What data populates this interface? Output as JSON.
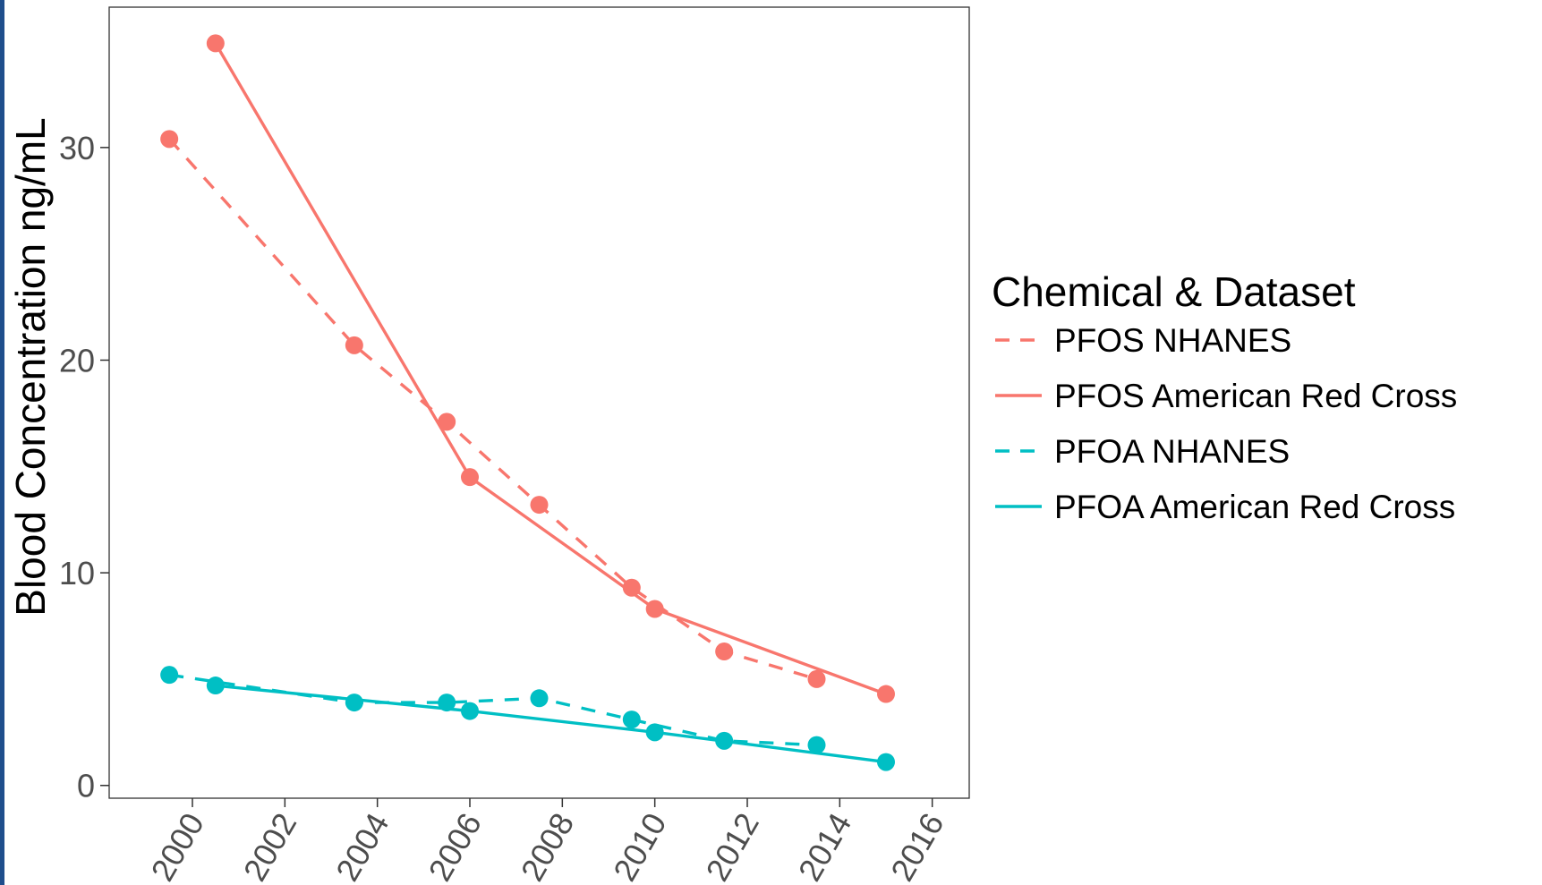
{
  "chart_data": {
    "type": "line",
    "title": "",
    "xlabel": "",
    "ylabel": "Blood Concentration ng/mL",
    "xlim": [
      1998.2,
      2016.8
    ],
    "ylim": [
      -0.6,
      36.6
    ],
    "xticks": [
      2000,
      2002,
      2004,
      2006,
      2008,
      2010,
      2012,
      2014,
      2016
    ],
    "yticks": [
      0,
      10,
      20,
      30
    ],
    "grid": false,
    "legend": {
      "title": "Chemical & Dataset",
      "placement": "right"
    },
    "series": [
      {
        "name": "PFOS NHANES",
        "color": "#F8766D",
        "linestyle": "dashed",
        "x": [
          1999.5,
          2003.5,
          2005.5,
          2007.5,
          2009.5,
          2011.5,
          2013.5
        ],
        "y": [
          30.4,
          20.7,
          17.1,
          13.2,
          9.3,
          6.3,
          5.0
        ]
      },
      {
        "name": "PFOS American Red Cross",
        "color": "#F8766D",
        "linestyle": "solid",
        "x": [
          2000.5,
          2006,
          2010,
          2015
        ],
        "y": [
          34.9,
          14.5,
          8.3,
          4.3
        ]
      },
      {
        "name": "PFOA NHANES",
        "color": "#00BFC4",
        "linestyle": "dashed",
        "x": [
          1999.5,
          2003.5,
          2005.5,
          2007.5,
          2009.5,
          2011.5,
          2013.5
        ],
        "y": [
          5.2,
          3.9,
          3.9,
          4.1,
          3.1,
          2.1,
          1.9
        ]
      },
      {
        "name": "PFOA American Red Cross",
        "color": "#00BFC4",
        "linestyle": "solid",
        "x": [
          2000.5,
          2006,
          2010,
          2015
        ],
        "y": [
          4.7,
          3.5,
          2.5,
          1.1
        ]
      }
    ]
  }
}
